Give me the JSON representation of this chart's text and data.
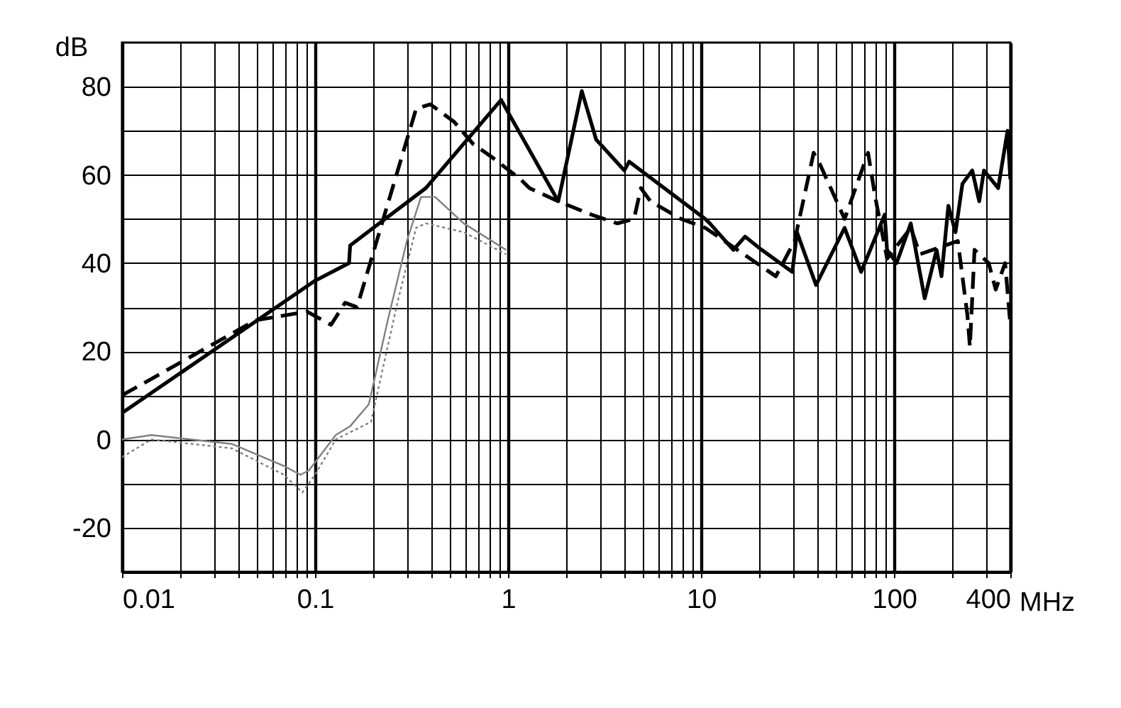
{
  "chart_data": {
    "type": "line",
    "xlabel": "MHz",
    "ylabel": "dB",
    "log": "x",
    "grid": true,
    "marker": "none",
    "xlim": [
      0.01,
      400
    ],
    "ylim": [
      -30,
      90
    ],
    "xticks": [
      0.01,
      {
        "value": 0.02,
        "label": null
      },
      {
        "value": 0.03,
        "label": null
      },
      {
        "value": 0.04,
        "label": null
      },
      {
        "value": 0.05,
        "label": null
      },
      {
        "value": 0.06,
        "label": null
      },
      {
        "value": 0.07,
        "label": null
      },
      {
        "value": 0.08,
        "label": null
      },
      {
        "value": 0.09,
        "label": null
      },
      0.1,
      {
        "value": 0.2,
        "label": null
      },
      {
        "value": 0.3,
        "label": null
      },
      {
        "value": 0.4,
        "label": null
      },
      {
        "value": 0.5,
        "label": null
      },
      {
        "value": 0.6,
        "label": null
      },
      {
        "value": 0.7,
        "label": null
      },
      {
        "value": 0.8,
        "label": null
      },
      {
        "value": 0.9,
        "label": null
      },
      1,
      {
        "value": 2,
        "label": null
      },
      {
        "value": 3,
        "label": null
      },
      {
        "value": 4,
        "label": null
      },
      {
        "value": 5,
        "label": null
      },
      {
        "value": 6,
        "label": null
      },
      {
        "value": 7,
        "label": null
      },
      {
        "value": 8,
        "label": null
      },
      {
        "value": 9,
        "label": null
      },
      10,
      {
        "value": 20,
        "label": null
      },
      {
        "value": 30,
        "label": null
      },
      {
        "value": 40,
        "label": null
      },
      {
        "value": 50,
        "label": null
      },
      {
        "value": 60,
        "label": null
      },
      {
        "value": 70,
        "label": null
      },
      {
        "value": 80,
        "label": null
      },
      {
        "value": 90,
        "label": null
      },
      100,
      {
        "value": 200,
        "label": null
      },
      {
        "value": 300,
        "label": null
      },
      400
    ],
    "yticks": [
      -20,
      {
        "value": -10,
        "label": null
      },
      0,
      {
        "value": 10,
        "label": null
      },
      20,
      {
        "value": 30,
        "label": null
      },
      40,
      {
        "value": 50,
        "label": null
      },
      60,
      {
        "value": 70,
        "label": null
      },
      80
    ],
    "series": [
      {
        "color": "#000000",
        "line_style": "solid",
        "x": [
          0.01,
          0.1,
          0.15,
          0.152,
          0.375,
          0.92,
          1.82,
          2.41,
          2.86,
          4.0,
          4.24,
          10.5,
          11.1,
          14.7,
          16.9,
          20.6,
          29.7,
          31.4,
          39.4,
          55.4,
          67.5,
          89.4,
          91.9,
          103,
          122,
          144,
          166,
          176,
          191,
          208,
          226,
          254,
          276,
          292,
          346,
          387,
          400
        ],
        "values": [
          6,
          36,
          40,
          44,
          57,
          77,
          54,
          79,
          68,
          61,
          63,
          50,
          49,
          43,
          46,
          43,
          38,
          47,
          35,
          48,
          38,
          51,
          43,
          40,
          49,
          32,
          43,
          37,
          53,
          47,
          58,
          61,
          54,
          61,
          57,
          70,
          59
        ]
      },
      {
        "color": "#000000",
        "line_style": "dashed",
        "x": [
          0.01,
          0.049,
          0.091,
          0.1,
          0.121,
          0.143,
          0.165,
          0.334,
          0.396,
          0.526,
          0.659,
          0.826,
          1.16,
          1.29,
          1.82,
          2.7,
          3.68,
          4.49,
          4.88,
          5.47,
          7.89,
          10.5,
          19.4,
          24.4,
          30.5,
          38.3,
          41.7,
          55.4,
          73.3,
          79.8,
          92,
          122,
          136,
          214,
          240,
          247,
          261,
          309,
          336,
          376,
          400
        ],
        "values": [
          10,
          27,
          29,
          28,
          26,
          31,
          30,
          75,
          76,
          72,
          67,
          64,
          59,
          57,
          54,
          51,
          49,
          50,
          57,
          54,
          50,
          48,
          40,
          37,
          45,
          65,
          62,
          50,
          65,
          55,
          41,
          48,
          42,
          45,
          28,
          21,
          43,
          40,
          34,
          40,
          26
        ]
      },
      {
        "color": "#808080",
        "line_style": "solid",
        "x": [
          0.01,
          0.0142,
          0.037,
          0.069,
          0.084,
          0.093,
          0.128,
          0.152,
          0.19,
          0.238,
          0.299,
          0.354,
          0.419,
          0.589,
          0.977
        ],
        "values": [
          0,
          1,
          -1,
          -6,
          -8,
          -7,
          1,
          3,
          8,
          27,
          45,
          55,
          55,
          49,
          43
        ]
      },
      {
        "color": "#808080",
        "line_style": "dotted",
        "x": [
          0.01,
          0.0142,
          0.037,
          0.069,
          0.086,
          0.1,
          0.128,
          0.195,
          0.267,
          0.334,
          0.375,
          0.589,
          0.977
        ],
        "values": [
          -4,
          0,
          -2,
          -8,
          -12,
          -8,
          0,
          4,
          31,
          48,
          49,
          47,
          42
        ]
      }
    ]
  }
}
